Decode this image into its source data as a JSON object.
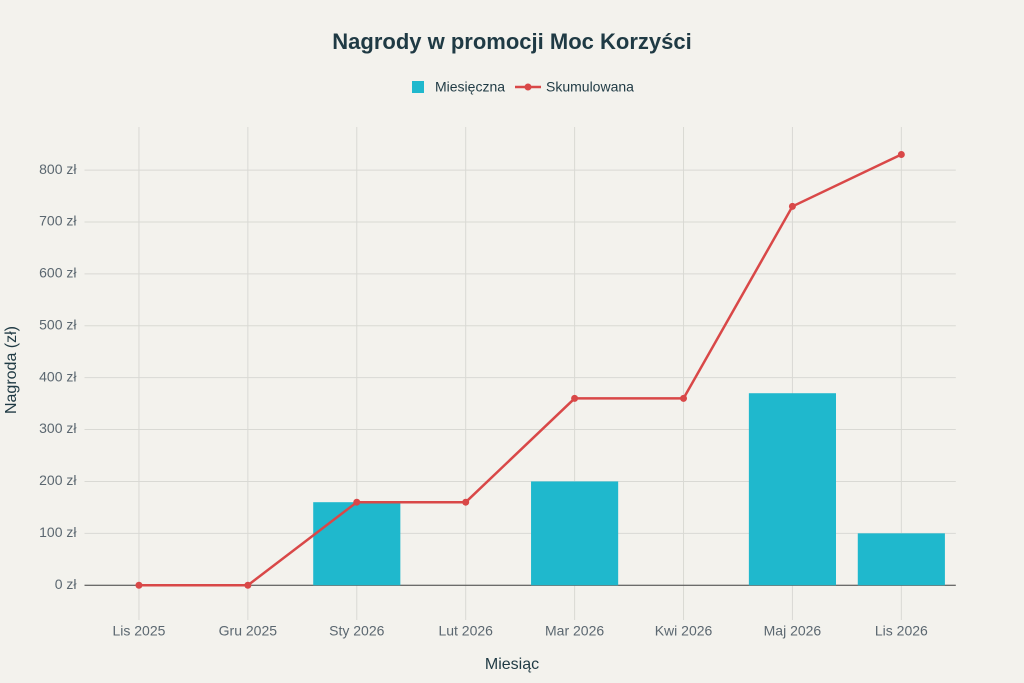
{
  "chart_data": {
    "type": "bar",
    "title": "Nagrody w promocji Moc Korzyści",
    "x_label": "Miesiąc",
    "y_label": "Nagroda (zł)",
    "categories": [
      "Lis 2025",
      "Gru 2025",
      "Sty 2026",
      "Lut 2026",
      "Mar 2026",
      "Kwi 2026",
      "Maj 2026",
      "Lis 2026"
    ],
    "series": [
      {
        "name": "Miesięczna",
        "type": "bar",
        "color": "#1fb8cd",
        "values": [
          0,
          0,
          160,
          0,
          200,
          0,
          370,
          100
        ]
      },
      {
        "name": "Skumulowana",
        "type": "line",
        "color": "#d94848",
        "values": [
          0,
          0,
          160,
          160,
          360,
          360,
          730,
          830
        ]
      }
    ],
    "ylim": [
      -67,
      883
    ],
    "yticks": [
      {
        "value": 0,
        "label": "0 zł"
      },
      {
        "value": 100,
        "label": "100 zł"
      },
      {
        "value": 200,
        "label": "200 zł"
      },
      {
        "value": 300,
        "label": "300 zł"
      },
      {
        "value": 400,
        "label": "400 zł"
      },
      {
        "value": 500,
        "label": "500 zł"
      },
      {
        "value": 600,
        "label": "600 zł"
      },
      {
        "value": 700,
        "label": "700 zł"
      },
      {
        "value": 800,
        "label": "800 zł"
      }
    ],
    "grid": true
  }
}
